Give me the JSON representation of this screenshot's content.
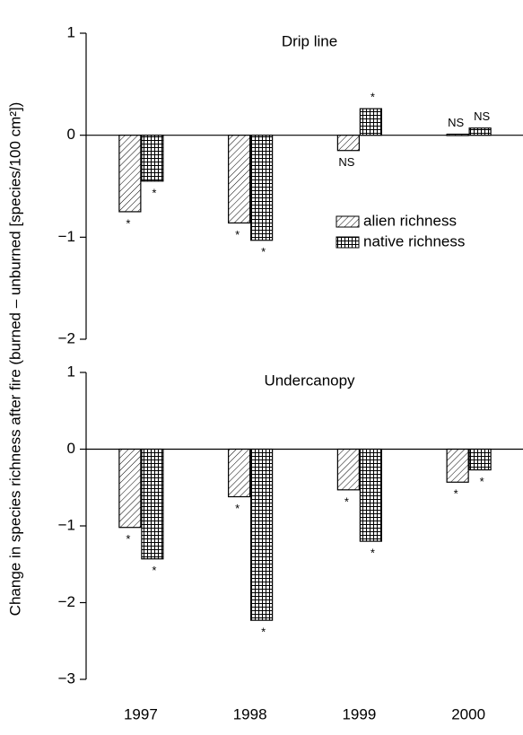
{
  "ylabel": "Change in species richness after fire (burned – unburned [species/100 cm²])",
  "chart_data": [
    {
      "type": "bar",
      "title": "Drip line",
      "legend": true,
      "ylim": [
        -2,
        1
      ],
      "yticks": [
        {
          "value": -2,
          "label": "−2"
        },
        {
          "value": -1,
          "label": "−1"
        },
        0,
        1
      ],
      "series": [
        {
          "name": "alien richness",
          "color": "#000000",
          "pattern": "hatch",
          "values": [
            -0.75,
            -0.86,
            -0.15,
            0.01
          ],
          "significance": [
            "*",
            "*",
            "NS",
            "NS"
          ]
        },
        {
          "name": "native richness",
          "color": "#000000",
          "pattern": "grid",
          "values": [
            -0.45,
            -1.03,
            0.26,
            0.07
          ],
          "significance": [
            "*",
            "*",
            "*",
            "NS"
          ]
        }
      ]
    },
    {
      "type": "bar",
      "title": "Undercanopy",
      "legend": false,
      "categories": [
        "1997",
        "1998",
        "1999",
        "2000"
      ],
      "ylim": [
        -3,
        1
      ],
      "yticks": [
        {
          "value": -3,
          "label": "−3"
        },
        {
          "value": -2,
          "label": "−2"
        },
        {
          "value": -1,
          "label": "−1"
        },
        0,
        1
      ],
      "series": [
        {
          "color": "#000000",
          "pattern": "hatch",
          "values": [
            -1.02,
            -0.62,
            -0.53,
            -0.43
          ],
          "significance": [
            "*",
            "*",
            "*",
            "*"
          ]
        },
        {
          "color": "#000000",
          "pattern": "grid",
          "values": [
            -1.43,
            -2.23,
            -1.2,
            -0.27
          ],
          "significance": [
            "*",
            "*",
            "*",
            "*"
          ]
        }
      ]
    }
  ]
}
